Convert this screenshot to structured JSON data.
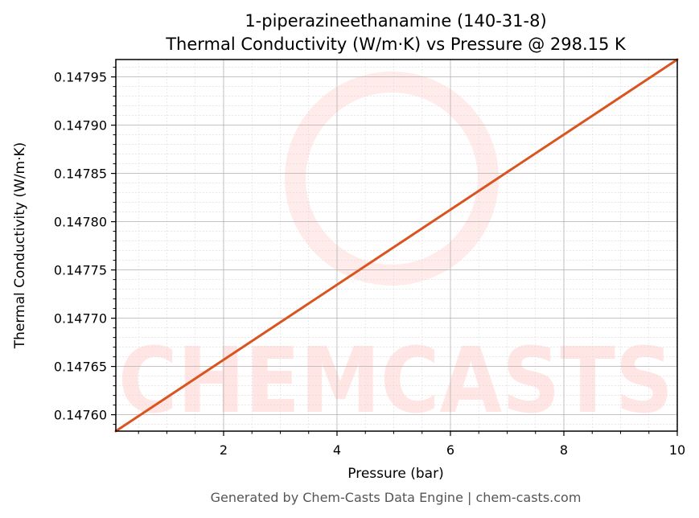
{
  "chart_data": {
    "type": "line",
    "title": "1-piperazineethanamine (140-31-8)",
    "subtitle": "Thermal Conductivity (W/m·K) vs Pressure @ 298.15 K",
    "xlabel": "Pressure (bar)",
    "ylabel": "Thermal Conductivity (W/m·K)",
    "xlim": [
      0.1,
      10
    ],
    "ylim": [
      0.147583,
      0.147968
    ],
    "x_ticks": [
      2,
      4,
      6,
      8,
      10
    ],
    "x_tick_labels": [
      "2",
      "4",
      "6",
      "8",
      "10"
    ],
    "y_ticks": [
      0.1476,
      0.14765,
      0.1477,
      0.14775,
      0.1478,
      0.14785,
      0.1479,
      0.14795
    ],
    "y_tick_labels": [
      "0.14760",
      "0.14765",
      "0.14770",
      "0.14775",
      "0.14780",
      "0.14785",
      "0.14790",
      "0.14795"
    ],
    "grid": true,
    "series": [
      {
        "color": "#d9541e",
        "x": [
          0.1,
          10
        ],
        "y": [
          0.147583,
          0.147968
        ]
      }
    ]
  },
  "watermark": {
    "text": "CHEMCASTS",
    "color": "#ff3a2e"
  },
  "footer": {
    "text": "Generated by Chem-Casts Data Engine | chem-casts.com"
  }
}
